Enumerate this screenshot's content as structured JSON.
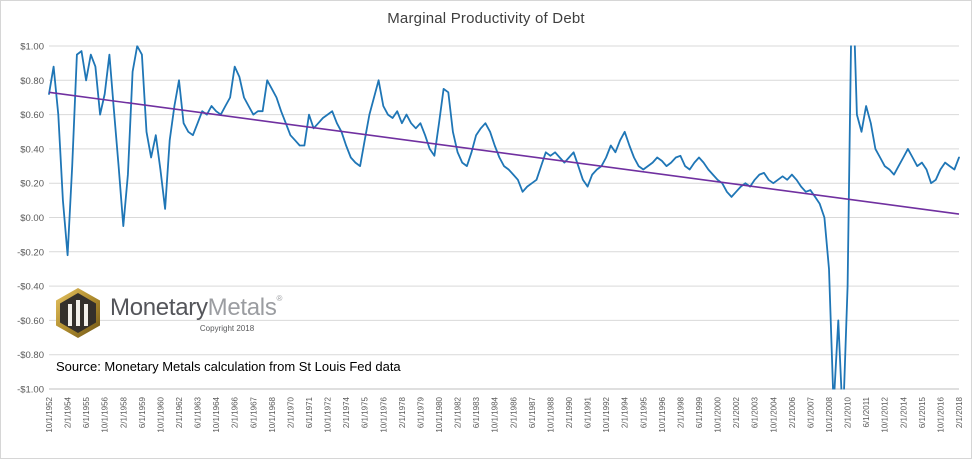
{
  "chart_data": {
    "type": "line",
    "title": "Marginal Productivity of Debt",
    "ylim": [
      -1,
      1
    ],
    "ytick_step": 0.2,
    "ytick_labels": [
      "$1.00",
      "$0.80",
      "$0.60",
      "$0.40",
      "$0.20",
      "$0.00",
      "-$0.20",
      "-$0.40",
      "-$0.60",
      "-$0.80",
      "-$1.00"
    ],
    "ticks_every_n_points": 4,
    "x_tick_labels": [
      "10/1/1952",
      "2/1/1954",
      "6/1/1955",
      "10/1/1956",
      "2/1/1958",
      "6/1/1959",
      "10/1/1960",
      "2/1/1962",
      "6/1/1963",
      "10/1/1964",
      "2/1/1966",
      "6/1/1967",
      "10/1/1968",
      "2/1/1970",
      "6/1/1971",
      "10/1/1972",
      "2/1/1974",
      "6/1/1975",
      "10/1/1976",
      "2/1/1978",
      "6/1/1979",
      "10/1/1980",
      "2/1/1982",
      "6/1/1983",
      "10/1/1984",
      "2/1/1986",
      "6/1/1987",
      "10/1/1988",
      "2/1/1990",
      "6/1/1991",
      "10/1/1992",
      "2/1/1994",
      "6/1/1995",
      "10/1/1996",
      "2/1/1998",
      "6/1/1999",
      "10/1/2000",
      "2/1/2002",
      "6/1/2003",
      "10/1/2004",
      "2/1/2006",
      "6/1/2007",
      "10/1/2008",
      "2/1/2010",
      "6/1/2011",
      "10/1/2012",
      "2/1/2014",
      "6/1/2015",
      "10/1/2016",
      "2/1/2018"
    ],
    "grid": true,
    "legend": "none",
    "series": [
      {
        "name": "Marginal Productivity of Debt",
        "color": "#1f76b6",
        "values": [
          0.72,
          0.88,
          0.6,
          0.1,
          -0.22,
          0.3,
          0.95,
          0.97,
          0.8,
          0.95,
          0.88,
          0.6,
          0.72,
          0.95,
          0.62,
          0.3,
          -0.05,
          0.25,
          0.85,
          1.0,
          0.95,
          0.5,
          0.35,
          0.48,
          0.28,
          0.05,
          0.45,
          0.65,
          0.8,
          0.55,
          0.5,
          0.48,
          0.55,
          0.62,
          0.6,
          0.65,
          0.62,
          0.6,
          0.65,
          0.7,
          0.88,
          0.82,
          0.7,
          0.65,
          0.6,
          0.62,
          0.62,
          0.8,
          0.75,
          0.7,
          0.62,
          0.55,
          0.48,
          0.45,
          0.42,
          0.42,
          0.6,
          0.52,
          0.55,
          0.58,
          0.6,
          0.62,
          0.55,
          0.5,
          0.42,
          0.35,
          0.32,
          0.3,
          0.45,
          0.6,
          0.7,
          0.8,
          0.65,
          0.6,
          0.58,
          0.62,
          0.55,
          0.6,
          0.55,
          0.52,
          0.55,
          0.48,
          0.4,
          0.36,
          0.55,
          0.75,
          0.73,
          0.5,
          0.38,
          0.32,
          0.3,
          0.38,
          0.48,
          0.52,
          0.55,
          0.5,
          0.42,
          0.35,
          0.3,
          0.28,
          0.25,
          0.22,
          0.15,
          0.18,
          0.2,
          0.22,
          0.3,
          0.38,
          0.36,
          0.38,
          0.35,
          0.32,
          0.35,
          0.38,
          0.3,
          0.22,
          0.18,
          0.25,
          0.28,
          0.3,
          0.35,
          0.42,
          0.38,
          0.45,
          0.5,
          0.42,
          0.35,
          0.3,
          0.28,
          0.3,
          0.32,
          0.35,
          0.33,
          0.3,
          0.32,
          0.35,
          0.36,
          0.3,
          0.28,
          0.32,
          0.35,
          0.32,
          0.28,
          0.25,
          0.22,
          0.2,
          0.15,
          0.12,
          0.15,
          0.18,
          0.2,
          0.18,
          0.22,
          0.25,
          0.26,
          0.22,
          0.2,
          0.22,
          0.24,
          0.22,
          0.25,
          0.22,
          0.18,
          0.15,
          0.16,
          0.12,
          0.08,
          0.0,
          -0.3,
          -1.1,
          -0.6,
          -1.2,
          -0.4,
          1.5,
          0.6,
          0.5,
          0.65,
          0.55,
          0.4,
          0.35,
          0.3,
          0.28,
          0.25,
          0.3,
          0.35,
          0.4,
          0.35,
          0.3,
          0.32,
          0.28,
          0.2,
          0.22,
          0.28,
          0.32,
          0.3,
          0.28,
          0.35
        ]
      }
    ],
    "trendline": {
      "name": "Linear trend",
      "color": "#7030a0",
      "start": 0.73,
      "end": 0.02
    },
    "colors": {
      "grid": "#d9d9d9",
      "axis_text": "#595959",
      "axis_line": "#bfbfbf",
      "background": "#ffffff"
    }
  },
  "branding": {
    "logo_text_primary": "Monetary",
    "logo_text_secondary": "Metals",
    "registered_mark": "®",
    "copyright": "Copyright 2018"
  },
  "source_note": "Source: Monetary Metals calculation from St Louis Fed data"
}
